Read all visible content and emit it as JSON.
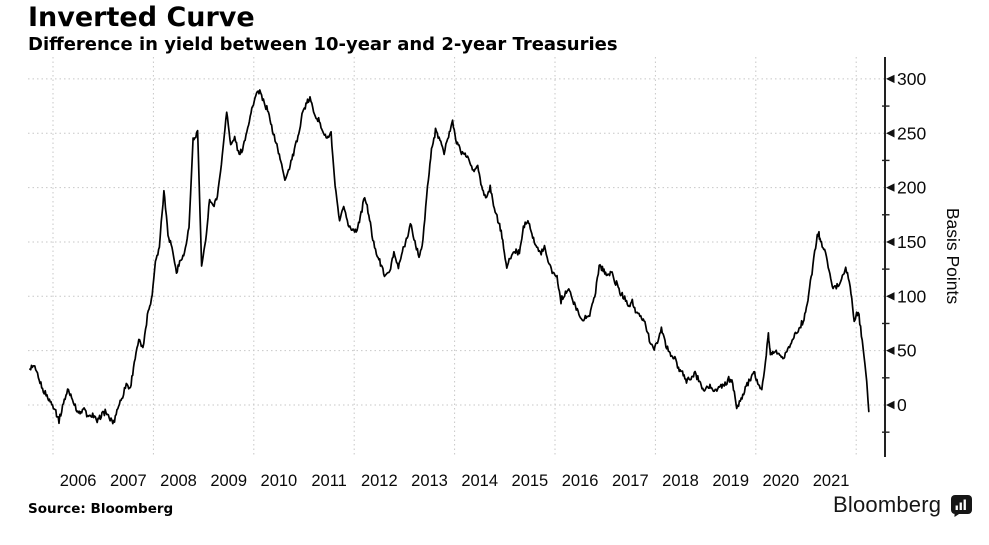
{
  "header": {
    "title": "Inverted Curve",
    "subtitle": "Difference in yield between 10-year and 2-year Treasuries"
  },
  "footer": {
    "source_label": "Source: Bloomberg",
    "brand": "Bloomberg",
    "brand_icon": "bloomberg-terminal-icon"
  },
  "chart_data": {
    "type": "line",
    "title": "Inverted Curve",
    "subtitle": "Difference in yield between 10-year and 2-year Treasuries",
    "xlabel": "",
    "ylabel": "Basis Points",
    "yticks": [
      0,
      50,
      100,
      150,
      200,
      250,
      300
    ],
    "minor_ytick_step": 25,
    "ylim": [
      -48,
      320
    ],
    "xlim": [
      2005.5,
      2022.3
    ],
    "xticks": [
      2006,
      2007,
      2008,
      2009,
      2010,
      2011,
      2012,
      2013,
      2014,
      2015,
      2016,
      2017,
      2018,
      2019,
      2020,
      2021
    ],
    "x_gridlines": [
      2006,
      2008,
      2010,
      2012,
      2014,
      2016,
      2018,
      2020,
      2022
    ],
    "grid": "dotted",
    "legend": "none",
    "line_color": "#000000",
    "grid_color": "#c7c7c7",
    "axis_color": "#222222",
    "series": [
      {
        "name": "10-year minus 2-year Treasury yield spread (bp)",
        "points": [
          [
            2005.54,
            33
          ],
          [
            2005.62,
            36
          ],
          [
            2005.71,
            25
          ],
          [
            2005.79,
            15
          ],
          [
            2005.88,
            8
          ],
          [
            2005.96,
            2
          ],
          [
            2006.04,
            -4
          ],
          [
            2006.12,
            -14
          ],
          [
            2006.21,
            2
          ],
          [
            2006.29,
            14
          ],
          [
            2006.37,
            8
          ],
          [
            2006.46,
            -3
          ],
          [
            2006.54,
            -8
          ],
          [
            2006.62,
            -4
          ],
          [
            2006.71,
            -12
          ],
          [
            2006.79,
            -8
          ],
          [
            2006.88,
            -16
          ],
          [
            2006.96,
            -9
          ],
          [
            2007.04,
            -6
          ],
          [
            2007.12,
            -13
          ],
          [
            2007.21,
            -16
          ],
          [
            2007.29,
            -2
          ],
          [
            2007.37,
            6
          ],
          [
            2007.46,
            20
          ],
          [
            2007.54,
            14
          ],
          [
            2007.62,
            40
          ],
          [
            2007.71,
            60
          ],
          [
            2007.79,
            52
          ],
          [
            2007.88,
            83
          ],
          [
            2007.96,
            96
          ],
          [
            2008.04,
            132
          ],
          [
            2008.12,
            146
          ],
          [
            2008.21,
            198
          ],
          [
            2008.29,
            158
          ],
          [
            2008.37,
            144
          ],
          [
            2008.46,
            122
          ],
          [
            2008.54,
            133
          ],
          [
            2008.62,
            140
          ],
          [
            2008.71,
            163
          ],
          [
            2008.79,
            243
          ],
          [
            2008.88,
            252
          ],
          [
            2008.96,
            128
          ],
          [
            2009.04,
            150
          ],
          [
            2009.12,
            190
          ],
          [
            2009.21,
            182
          ],
          [
            2009.29,
            198
          ],
          [
            2009.37,
            228
          ],
          [
            2009.46,
            272
          ],
          [
            2009.54,
            238
          ],
          [
            2009.62,
            246
          ],
          [
            2009.71,
            230
          ],
          [
            2009.79,
            238
          ],
          [
            2009.88,
            256
          ],
          [
            2009.96,
            272
          ],
          [
            2010.04,
            285
          ],
          [
            2010.12,
            288
          ],
          [
            2010.21,
            278
          ],
          [
            2010.29,
            270
          ],
          [
            2010.37,
            252
          ],
          [
            2010.46,
            240
          ],
          [
            2010.54,
            224
          ],
          [
            2010.62,
            208
          ],
          [
            2010.71,
            218
          ],
          [
            2010.79,
            232
          ],
          [
            2010.88,
            246
          ],
          [
            2010.96,
            268
          ],
          [
            2011.04,
            276
          ],
          [
            2011.12,
            282
          ],
          [
            2011.21,
            268
          ],
          [
            2011.29,
            262
          ],
          [
            2011.37,
            252
          ],
          [
            2011.46,
            245
          ],
          [
            2011.54,
            250
          ],
          [
            2011.62,
            200
          ],
          [
            2011.71,
            168
          ],
          [
            2011.79,
            183
          ],
          [
            2011.88,
            165
          ],
          [
            2011.96,
            162
          ],
          [
            2012.04,
            160
          ],
          [
            2012.12,
            172
          ],
          [
            2012.21,
            192
          ],
          [
            2012.29,
            175
          ],
          [
            2012.37,
            152
          ],
          [
            2012.46,
            138
          ],
          [
            2012.54,
            128
          ],
          [
            2012.62,
            118
          ],
          [
            2012.71,
            124
          ],
          [
            2012.79,
            140
          ],
          [
            2012.88,
            126
          ],
          [
            2012.96,
            142
          ],
          [
            2013.04,
            152
          ],
          [
            2013.12,
            166
          ],
          [
            2013.21,
            150
          ],
          [
            2013.29,
            136
          ],
          [
            2013.37,
            152
          ],
          [
            2013.46,
            200
          ],
          [
            2013.54,
            235
          ],
          [
            2013.62,
            252
          ],
          [
            2013.71,
            244
          ],
          [
            2013.79,
            232
          ],
          [
            2013.88,
            248
          ],
          [
            2013.96,
            262
          ],
          [
            2014.04,
            242
          ],
          [
            2014.12,
            234
          ],
          [
            2014.21,
            230
          ],
          [
            2014.29,
            226
          ],
          [
            2014.37,
            214
          ],
          [
            2014.46,
            220
          ],
          [
            2014.54,
            200
          ],
          [
            2014.62,
            190
          ],
          [
            2014.71,
            200
          ],
          [
            2014.79,
            180
          ],
          [
            2014.88,
            168
          ],
          [
            2014.96,
            152
          ],
          [
            2015.04,
            126
          ],
          [
            2015.12,
            136
          ],
          [
            2015.21,
            142
          ],
          [
            2015.29,
            140
          ],
          [
            2015.37,
            164
          ],
          [
            2015.46,
            172
          ],
          [
            2015.54,
            158
          ],
          [
            2015.62,
            146
          ],
          [
            2015.71,
            140
          ],
          [
            2015.79,
            145
          ],
          [
            2015.88,
            130
          ],
          [
            2015.96,
            122
          ],
          [
            2016.04,
            118
          ],
          [
            2016.12,
            96
          ],
          [
            2016.21,
            104
          ],
          [
            2016.29,
            106
          ],
          [
            2016.37,
            93
          ],
          [
            2016.46,
            87
          ],
          [
            2016.54,
            77
          ],
          [
            2016.62,
            81
          ],
          [
            2016.71,
            85
          ],
          [
            2016.79,
            100
          ],
          [
            2016.88,
            128
          ],
          [
            2016.96,
            125
          ],
          [
            2017.04,
            119
          ],
          [
            2017.12,
            122
          ],
          [
            2017.21,
            113
          ],
          [
            2017.29,
            104
          ],
          [
            2017.37,
            99
          ],
          [
            2017.46,
            92
          ],
          [
            2017.54,
            95
          ],
          [
            2017.62,
            84
          ],
          [
            2017.71,
            81
          ],
          [
            2017.79,
            76
          ],
          [
            2017.88,
            60
          ],
          [
            2017.96,
            52
          ],
          [
            2018.04,
            56
          ],
          [
            2018.12,
            72
          ],
          [
            2018.21,
            54
          ],
          [
            2018.29,
            47
          ],
          [
            2018.37,
            44
          ],
          [
            2018.46,
            34
          ],
          [
            2018.54,
            29
          ],
          [
            2018.62,
            22
          ],
          [
            2018.71,
            25
          ],
          [
            2018.79,
            29
          ],
          [
            2018.88,
            21
          ],
          [
            2018.96,
            14
          ],
          [
            2019.04,
            17
          ],
          [
            2019.12,
            16
          ],
          [
            2019.21,
            13
          ],
          [
            2019.29,
            19
          ],
          [
            2019.37,
            17
          ],
          [
            2019.46,
            24
          ],
          [
            2019.54,
            21
          ],
          [
            2019.62,
            -3
          ],
          [
            2019.71,
            5
          ],
          [
            2019.79,
            16
          ],
          [
            2019.88,
            23
          ],
          [
            2019.96,
            31
          ],
          [
            2020.04,
            19
          ],
          [
            2020.12,
            13
          ],
          [
            2020.21,
            47
          ],
          [
            2020.25,
            66
          ],
          [
            2020.29,
            46
          ],
          [
            2020.37,
            50
          ],
          [
            2020.46,
            48
          ],
          [
            2020.54,
            43
          ],
          [
            2020.62,
            51
          ],
          [
            2020.71,
            56
          ],
          [
            2020.79,
            66
          ],
          [
            2020.88,
            71
          ],
          [
            2020.96,
            80
          ],
          [
            2021.04,
            96
          ],
          [
            2021.12,
            122
          ],
          [
            2021.21,
            152
          ],
          [
            2021.25,
            158
          ],
          [
            2021.29,
            150
          ],
          [
            2021.37,
            142
          ],
          [
            2021.46,
            126
          ],
          [
            2021.54,
            107
          ],
          [
            2021.62,
            110
          ],
          [
            2021.71,
            115
          ],
          [
            2021.79,
            128
          ],
          [
            2021.88,
            108
          ],
          [
            2021.96,
            78
          ],
          [
            2022.04,
            86
          ],
          [
            2022.12,
            60
          ],
          [
            2022.21,
            22
          ],
          [
            2022.25,
            -6
          ]
        ]
      }
    ]
  }
}
